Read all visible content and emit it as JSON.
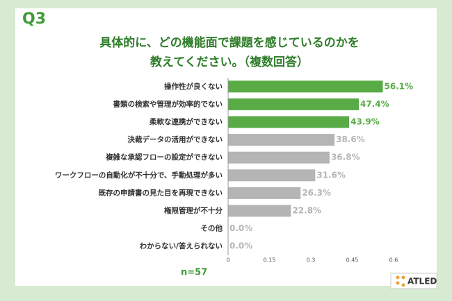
{
  "chart_data": {
    "type": "hbar",
    "label": "Q3",
    "title": [
      "具体的に、どの機能面で課題を感じているのかを",
      "教えてください。（複数回答）"
    ],
    "categories": [
      "操作性が良くない",
      "書類の検索や管理が効率的でない",
      "柔軟な連携ができない",
      "決裁データの活用ができない",
      "複雑な承認フローの設定ができない",
      "ワークフローの自動化が不十分で、手動処理が多い",
      "既存の申請書の見た目を再現できない",
      "権限管理が不十分",
      "その他",
      "わからない/答えられない"
    ],
    "values": [
      0.561,
      0.474,
      0.439,
      0.386,
      0.368,
      0.316,
      0.263,
      0.228,
      0,
      0
    ],
    "value_labels": [
      "56.1%",
      "47.4%",
      "43.9%",
      "38.6%",
      "36.8%",
      "31.6%",
      "26.3%",
      "22.8%",
      "0.0%",
      "0.0%"
    ],
    "colors": [
      "#58ab45",
      "#58ab45",
      "#58ab45",
      "#b5b5b5",
      "#b5b5b5",
      "#b5b5b5",
      "#b5b5b5",
      "#b5b5b5",
      "#b5b5b5",
      "#b5b5b5"
    ],
    "xlim": [
      0,
      0.6
    ],
    "xticks": [
      0,
      0.15,
      0.3,
      0.45,
      0.6
    ],
    "note": "n=57",
    "logo": "ATLED"
  }
}
